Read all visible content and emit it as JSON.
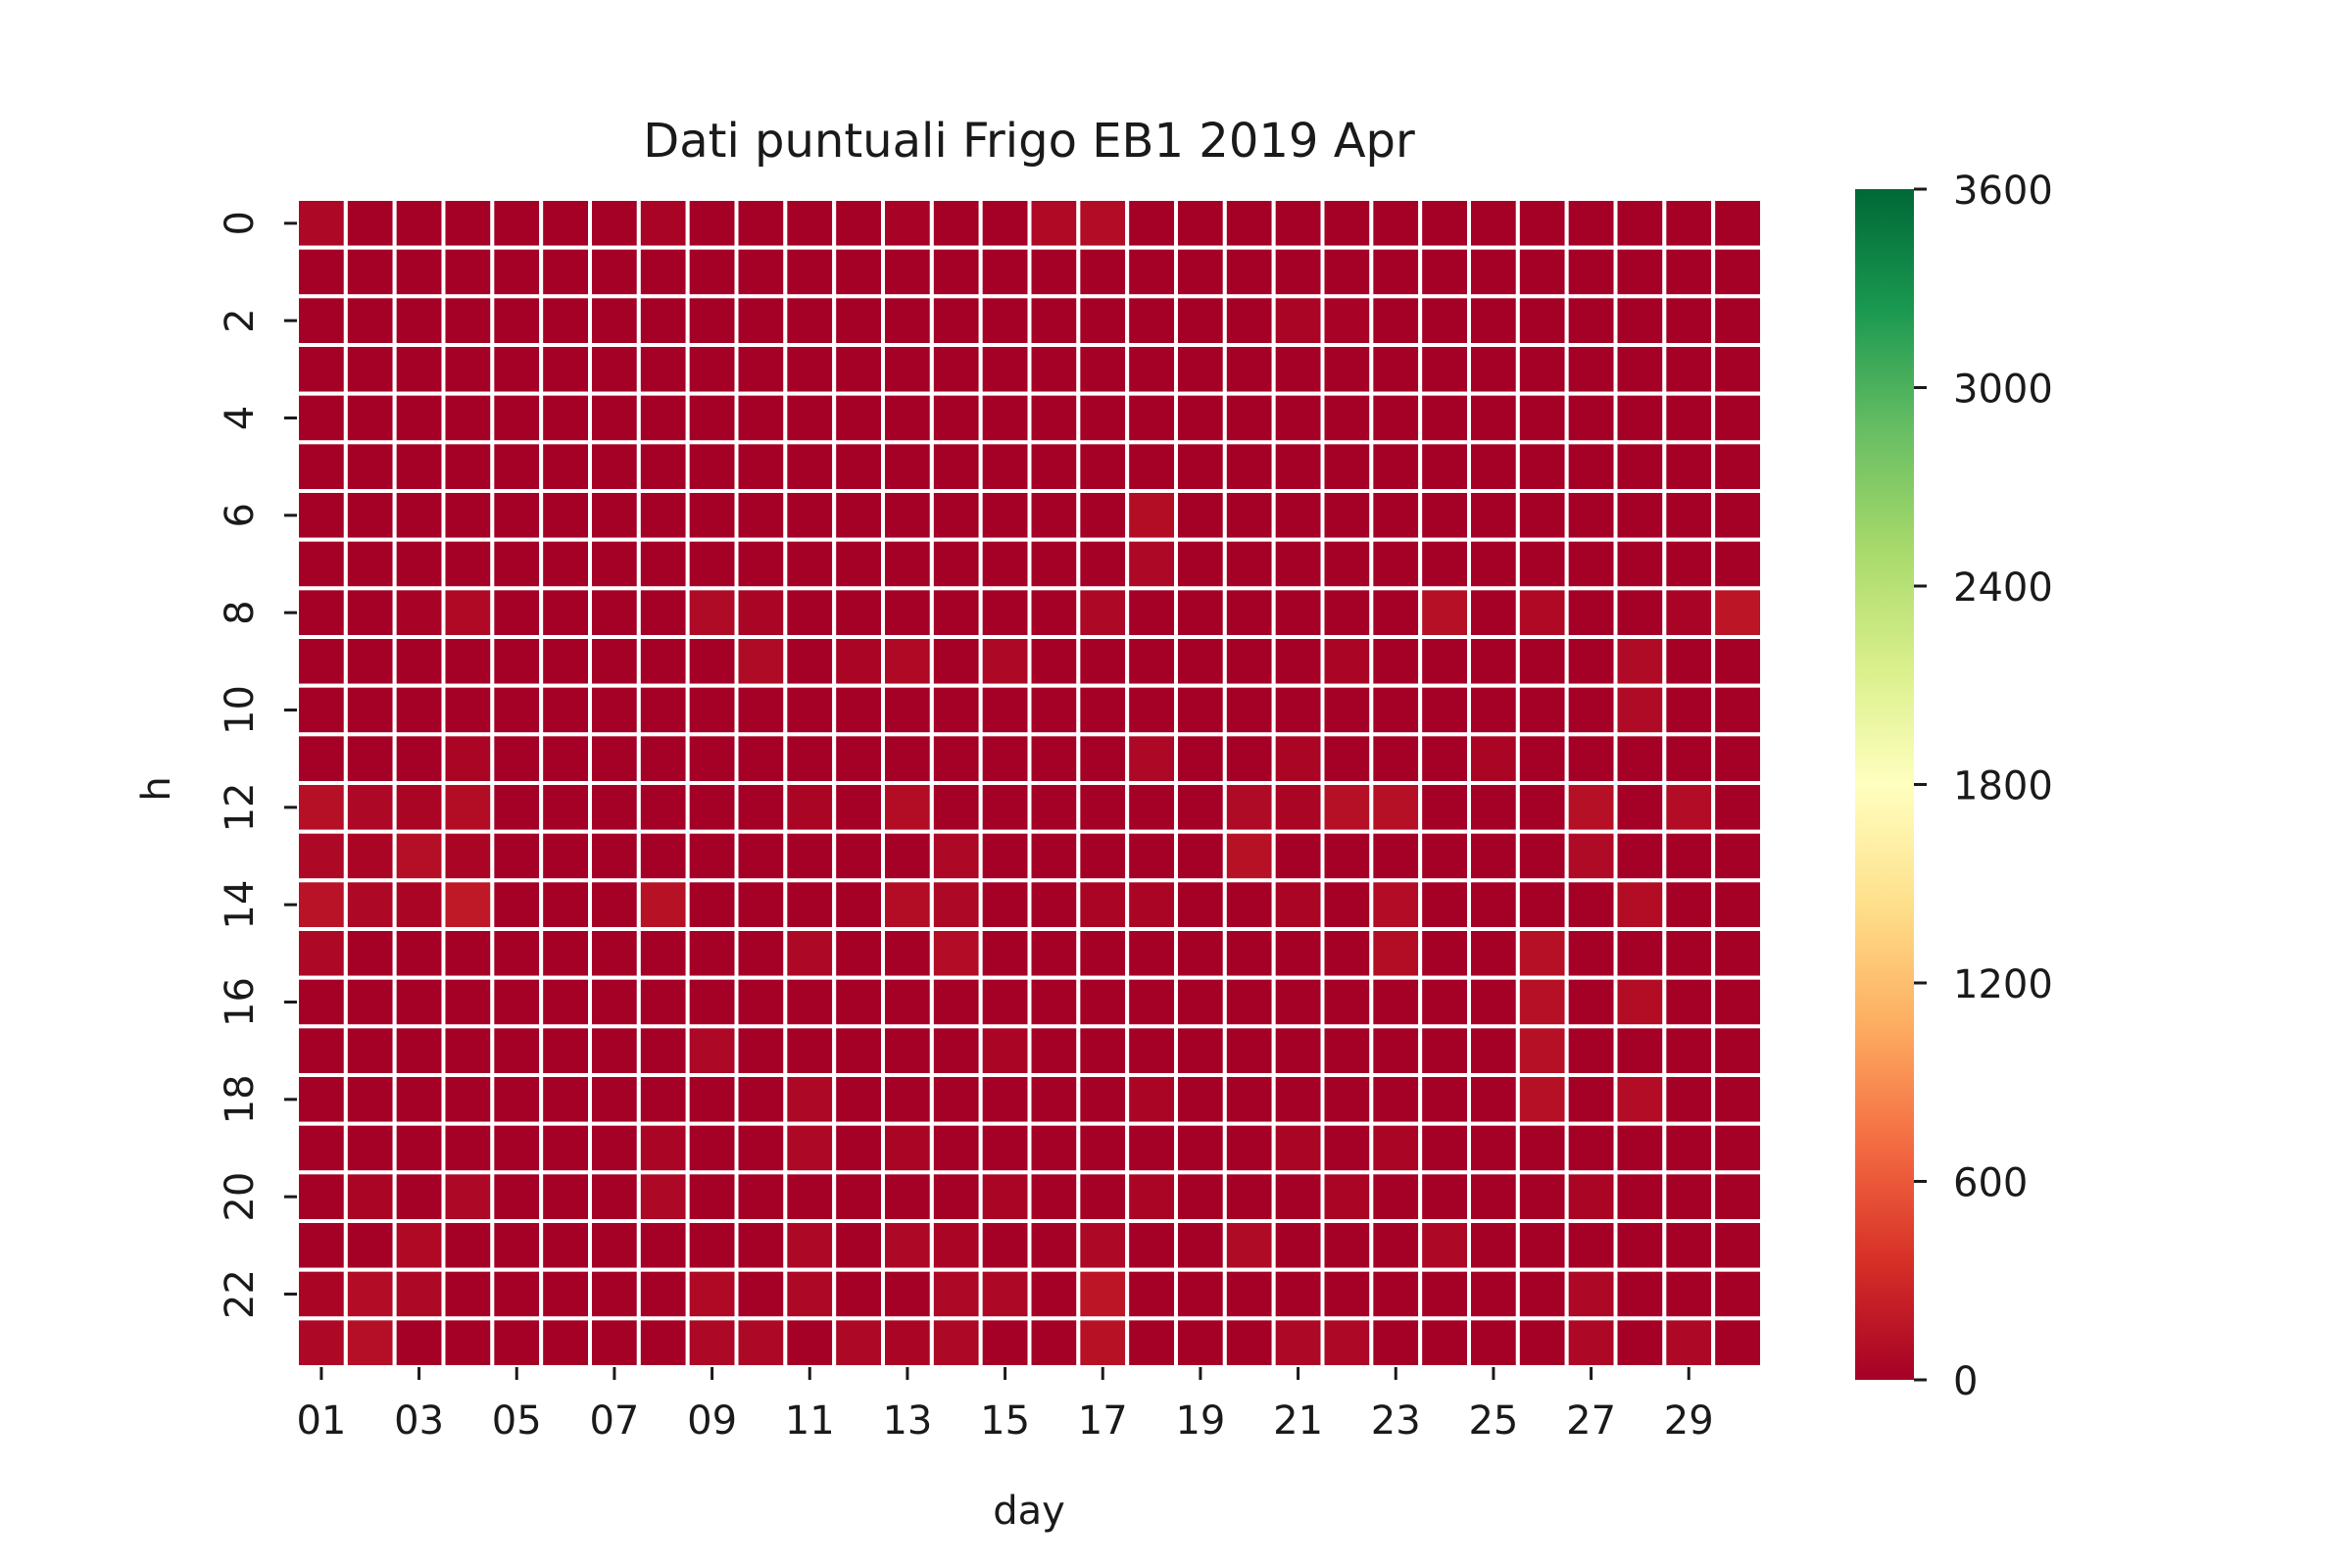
{
  "chart_data": {
    "type": "heatmap",
    "title": "Dati puntuali Frigo EB1 2019 Apr",
    "xlabel": "day",
    "ylabel": "h",
    "x_categories": [
      "01",
      "02",
      "03",
      "04",
      "05",
      "06",
      "07",
      "08",
      "09",
      "10",
      "11",
      "12",
      "13",
      "14",
      "15",
      "16",
      "17",
      "18",
      "19",
      "20",
      "21",
      "22",
      "23",
      "24",
      "25",
      "26",
      "27",
      "28",
      "29",
      "30"
    ],
    "x_tick_labels": [
      "01",
      "03",
      "05",
      "07",
      "09",
      "11",
      "13",
      "15",
      "17",
      "19",
      "21",
      "23",
      "25",
      "27",
      "29"
    ],
    "y_categories": [
      "0",
      "1",
      "2",
      "3",
      "4",
      "5",
      "6",
      "7",
      "8",
      "9",
      "10",
      "11",
      "12",
      "13",
      "14",
      "15",
      "16",
      "17",
      "18",
      "19",
      "20",
      "21",
      "22",
      "23"
    ],
    "y_tick_labels": [
      "0",
      "2",
      "4",
      "6",
      "8",
      "10",
      "12",
      "14",
      "16",
      "18",
      "20",
      "22"
    ],
    "colorbar": {
      "min": 0,
      "max": 3600,
      "ticks": [
        "0",
        "600",
        "1200",
        "1800",
        "2400",
        "3000",
        "3600"
      ],
      "colormap": "RdYlGn",
      "colors": [
        "#a50026",
        "#d73027",
        "#f46d43",
        "#fdae61",
        "#fee08b",
        "#ffffbf",
        "#d9ef8b",
        "#a6d96a",
        "#66bd63",
        "#1a9850",
        "#006837"
      ]
    },
    "grid_color": "#ffffff",
    "values": [
      [
        60,
        0,
        0,
        0,
        0,
        0,
        0,
        30,
        0,
        0,
        0,
        0,
        20,
        0,
        0,
        70,
        90,
        0,
        0,
        0,
        0,
        0,
        0,
        0,
        0,
        0,
        0,
        0,
        0,
        0
      ],
      [
        0,
        0,
        0,
        0,
        0,
        0,
        0,
        0,
        0,
        0,
        0,
        0,
        0,
        0,
        0,
        0,
        0,
        0,
        0,
        0,
        0,
        0,
        0,
        0,
        0,
        0,
        0,
        0,
        0,
        0
      ],
      [
        0,
        0,
        0,
        0,
        0,
        0,
        0,
        0,
        0,
        0,
        0,
        0,
        0,
        0,
        0,
        0,
        0,
        0,
        0,
        0,
        40,
        20,
        0,
        0,
        0,
        0,
        0,
        0,
        0,
        0
      ],
      [
        0,
        0,
        0,
        0,
        0,
        0,
        0,
        0,
        0,
        0,
        0,
        0,
        0,
        0,
        0,
        0,
        0,
        0,
        0,
        0,
        0,
        0,
        0,
        0,
        0,
        0,
        0,
        0,
        0,
        0
      ],
      [
        0,
        0,
        0,
        0,
        0,
        0,
        0,
        0,
        0,
        0,
        0,
        0,
        0,
        0,
        0,
        0,
        0,
        0,
        0,
        0,
        0,
        0,
        0,
        0,
        0,
        0,
        0,
        0,
        0,
        0
      ],
      [
        0,
        0,
        0,
        0,
        0,
        0,
        0,
        0,
        0,
        0,
        0,
        0,
        0,
        0,
        0,
        0,
        0,
        0,
        0,
        0,
        0,
        0,
        0,
        0,
        0,
        0,
        0,
        0,
        0,
        0
      ],
      [
        0,
        0,
        0,
        0,
        0,
        0,
        0,
        0,
        0,
        0,
        0,
        0,
        0,
        0,
        0,
        0,
        0,
        100,
        0,
        0,
        0,
        0,
        0,
        0,
        0,
        0,
        0,
        0,
        0,
        0
      ],
      [
        0,
        0,
        0,
        0,
        0,
        0,
        0,
        0,
        0,
        0,
        0,
        0,
        0,
        0,
        0,
        0,
        0,
        60,
        0,
        0,
        0,
        0,
        0,
        0,
        0,
        0,
        0,
        0,
        0,
        0
      ],
      [
        0,
        0,
        20,
        70,
        0,
        0,
        0,
        0,
        80,
        40,
        0,
        0,
        0,
        0,
        0,
        0,
        60,
        0,
        0,
        0,
        0,
        0,
        0,
        120,
        0,
        70,
        0,
        0,
        30,
        160
      ],
      [
        0,
        0,
        0,
        0,
        0,
        0,
        0,
        0,
        0,
        80,
        0,
        40,
        70,
        0,
        60,
        0,
        0,
        0,
        0,
        0,
        0,
        40,
        0,
        0,
        0,
        0,
        0,
        80,
        0,
        0
      ],
      [
        0,
        0,
        0,
        0,
        0,
        0,
        0,
        0,
        0,
        0,
        0,
        0,
        0,
        0,
        0,
        0,
        0,
        0,
        0,
        0,
        0,
        0,
        0,
        0,
        0,
        0,
        0,
        80,
        0,
        0
      ],
      [
        0,
        0,
        0,
        40,
        0,
        0,
        0,
        0,
        0,
        0,
        0,
        0,
        0,
        0,
        0,
        0,
        0,
        60,
        0,
        0,
        40,
        0,
        0,
        0,
        40,
        0,
        0,
        0,
        0,
        0
      ],
      [
        120,
        60,
        40,
        100,
        0,
        0,
        0,
        0,
        0,
        0,
        40,
        0,
        100,
        0,
        0,
        0,
        0,
        0,
        0,
        80,
        40,
        120,
        120,
        0,
        0,
        0,
        120,
        0,
        90,
        0
      ],
      [
        60,
        40,
        110,
        40,
        0,
        0,
        0,
        0,
        0,
        0,
        0,
        0,
        0,
        60,
        0,
        0,
        0,
        0,
        0,
        130,
        0,
        0,
        0,
        0,
        0,
        0,
        80,
        0,
        0,
        0
      ],
      [
        140,
        60,
        40,
        190,
        0,
        0,
        0,
        130,
        0,
        0,
        0,
        0,
        100,
        60,
        0,
        0,
        40,
        40,
        0,
        0,
        40,
        0,
        90,
        0,
        0,
        0,
        0,
        100,
        0,
        0
      ],
      [
        60,
        0,
        0,
        0,
        0,
        0,
        0,
        0,
        0,
        0,
        60,
        0,
        0,
        90,
        0,
        0,
        0,
        0,
        0,
        0,
        0,
        0,
        100,
        0,
        0,
        120,
        0,
        0,
        0,
        0
      ],
      [
        0,
        0,
        0,
        0,
        0,
        0,
        0,
        0,
        0,
        0,
        0,
        0,
        0,
        0,
        0,
        0,
        0,
        0,
        0,
        0,
        0,
        0,
        0,
        0,
        0,
        120,
        0,
        100,
        0,
        0
      ],
      [
        0,
        0,
        0,
        0,
        0,
        0,
        0,
        0,
        60,
        0,
        0,
        0,
        0,
        0,
        40,
        0,
        0,
        0,
        0,
        0,
        0,
        0,
        0,
        0,
        0,
        120,
        0,
        0,
        0,
        0
      ],
      [
        0,
        0,
        0,
        0,
        0,
        0,
        0,
        0,
        0,
        0,
        60,
        0,
        0,
        0,
        0,
        0,
        0,
        40,
        0,
        0,
        0,
        0,
        0,
        0,
        0,
        120,
        0,
        90,
        0,
        0
      ],
      [
        0,
        0,
        0,
        0,
        0,
        0,
        0,
        40,
        0,
        0,
        60,
        0,
        40,
        0,
        0,
        0,
        0,
        0,
        0,
        0,
        40,
        0,
        40,
        0,
        0,
        0,
        0,
        0,
        0,
        0
      ],
      [
        0,
        40,
        0,
        60,
        0,
        0,
        0,
        60,
        0,
        0,
        0,
        0,
        0,
        0,
        40,
        0,
        0,
        40,
        0,
        0,
        0,
        40,
        0,
        0,
        0,
        0,
        40,
        0,
        0,
        0
      ],
      [
        0,
        0,
        70,
        0,
        0,
        0,
        0,
        0,
        0,
        0,
        60,
        0,
        60,
        40,
        0,
        0,
        60,
        0,
        0,
        80,
        0,
        0,
        0,
        60,
        0,
        0,
        0,
        0,
        0,
        0
      ],
      [
        40,
        90,
        60,
        0,
        0,
        0,
        0,
        0,
        70,
        0,
        60,
        0,
        0,
        60,
        60,
        0,
        160,
        0,
        0,
        0,
        0,
        0,
        0,
        0,
        0,
        0,
        60,
        0,
        0,
        0
      ],
      [
        60,
        110,
        0,
        0,
        0,
        0,
        0,
        0,
        60,
        60,
        0,
        60,
        40,
        60,
        0,
        0,
        130,
        0,
        0,
        0,
        60,
        60,
        0,
        0,
        0,
        0,
        60,
        0,
        60,
        0
      ]
    ]
  }
}
